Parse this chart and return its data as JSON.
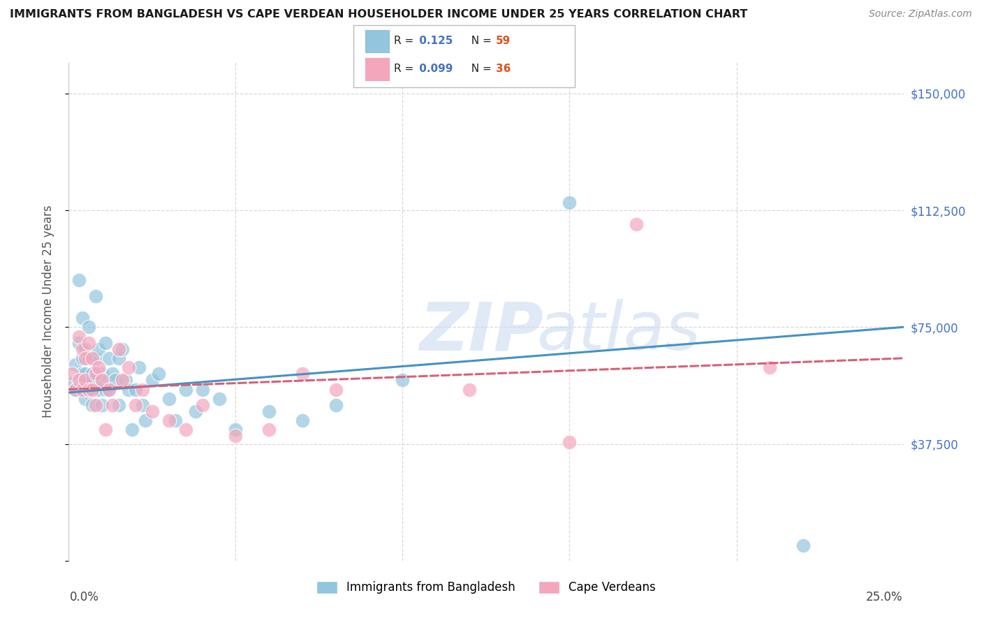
{
  "title": "IMMIGRANTS FROM BANGLADESH VS CAPE VERDEAN HOUSEHOLDER INCOME UNDER 25 YEARS CORRELATION CHART",
  "source": "Source: ZipAtlas.com",
  "ylabel": "Householder Income Under 25 years",
  "xlim": [
    0.0,
    0.25
  ],
  "ylim": [
    0,
    160000
  ],
  "yticks": [
    0,
    37500,
    75000,
    112500,
    150000
  ],
  "ytick_labels": [
    "",
    "$37,500",
    "$75,000",
    "$112,500",
    "$150,000"
  ],
  "watermark_zip": "ZIP",
  "watermark_atlas": "atlas",
  "legend_label1": "Immigrants from Bangladesh",
  "legend_label2": "Cape Verdeans",
  "color_blue": "#92c5de",
  "color_pink": "#f4a6bd",
  "color_blue_line": "#4393c3",
  "color_pink_line": "#d6607a",
  "background_color": "#ffffff",
  "grid_color": "#d9d9d9",
  "blue_x": [
    0.001,
    0.002,
    0.002,
    0.003,
    0.003,
    0.003,
    0.004,
    0.004,
    0.004,
    0.005,
    0.005,
    0.005,
    0.005,
    0.006,
    0.006,
    0.006,
    0.006,
    0.007,
    0.007,
    0.007,
    0.008,
    0.008,
    0.008,
    0.009,
    0.009,
    0.01,
    0.01,
    0.01,
    0.011,
    0.011,
    0.012,
    0.012,
    0.013,
    0.014,
    0.015,
    0.015,
    0.016,
    0.017,
    0.018,
    0.019,
    0.02,
    0.021,
    0.022,
    0.023,
    0.025,
    0.027,
    0.03,
    0.032,
    0.035,
    0.038,
    0.04,
    0.045,
    0.05,
    0.06,
    0.07,
    0.08,
    0.1,
    0.15,
    0.22
  ],
  "blue_y": [
    57000,
    63000,
    55000,
    70000,
    90000,
    55000,
    78000,
    65000,
    60000,
    68000,
    58000,
    52000,
    60000,
    75000,
    58000,
    65000,
    55000,
    60000,
    50000,
    58000,
    85000,
    65000,
    55000,
    68000,
    55000,
    60000,
    58000,
    50000,
    70000,
    55000,
    65000,
    55000,
    60000,
    58000,
    65000,
    50000,
    68000,
    58000,
    55000,
    42000,
    55000,
    62000,
    50000,
    45000,
    58000,
    60000,
    52000,
    45000,
    55000,
    48000,
    55000,
    52000,
    42000,
    48000,
    45000,
    50000,
    58000,
    115000,
    5000
  ],
  "pink_x": [
    0.001,
    0.002,
    0.003,
    0.003,
    0.004,
    0.004,
    0.005,
    0.005,
    0.006,
    0.006,
    0.007,
    0.007,
    0.008,
    0.008,
    0.009,
    0.01,
    0.011,
    0.012,
    0.013,
    0.015,
    0.016,
    0.018,
    0.02,
    0.022,
    0.025,
    0.03,
    0.035,
    0.04,
    0.05,
    0.06,
    0.07,
    0.08,
    0.12,
    0.15,
    0.17,
    0.21
  ],
  "pink_y": [
    60000,
    55000,
    72000,
    58000,
    68000,
    55000,
    65000,
    58000,
    70000,
    55000,
    65000,
    55000,
    60000,
    50000,
    62000,
    58000,
    42000,
    55000,
    50000,
    68000,
    58000,
    62000,
    50000,
    55000,
    48000,
    45000,
    42000,
    50000,
    40000,
    42000,
    60000,
    55000,
    55000,
    38000,
    108000,
    62000
  ],
  "blue_trend_x": [
    0.0,
    0.25
  ],
  "blue_trend_y": [
    54000,
    75000
  ],
  "pink_trend_x": [
    0.0,
    0.25
  ],
  "pink_trend_y": [
    55000,
    65000
  ]
}
